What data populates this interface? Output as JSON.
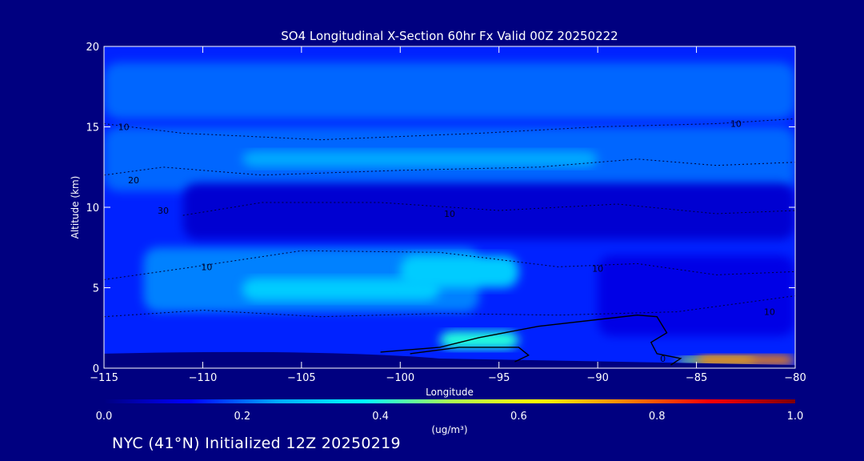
{
  "chart_data": {
    "type": "heatmap",
    "title": "SO4 Longitudinal X-Section 60hr  Fx Valid 00Z 20250222",
    "xlabel": "Longitude",
    "ylabel": "Altitude (km)",
    "xlim": [
      -115,
      -80
    ],
    "ylim": [
      0,
      20
    ],
    "x_ticks": [
      -115,
      -110,
      -105,
      -100,
      -95,
      -90,
      -85,
      -80
    ],
    "x_tick_labels": [
      "−115",
      "−110",
      "−105",
      "−100",
      "−95",
      "−90",
      "−85",
      "−80"
    ],
    "y_ticks": [
      0,
      5,
      10,
      15,
      20
    ],
    "y_tick_labels": [
      "0",
      "5",
      "10",
      "15",
      "20"
    ],
    "colorbar": {
      "label": "(ug/m³)",
      "range": [
        0.0,
        1.0
      ],
      "ticks": [
        0.0,
        0.2,
        0.4,
        0.6,
        0.8,
        1.0
      ],
      "tick_labels": [
        "0.0",
        "0.2",
        "0.4",
        "0.6",
        "0.8",
        "1.0"
      ],
      "colormap": "jet",
      "colors": [
        "#000080",
        "#0000ff",
        "#00aaff",
        "#00ffff",
        "#aaff55",
        "#ffff00",
        "#ff8800",
        "#ff0000",
        "#800000"
      ]
    },
    "filled_regions": [
      {
        "lon": [
          -115,
          -80
        ],
        "alt": [
          0,
          20
        ],
        "value": 0.15
      },
      {
        "lon": [
          -115,
          -80
        ],
        "alt": [
          15.5,
          19
        ],
        "value": 0.2
      },
      {
        "lon": [
          -115,
          -80
        ],
        "alt": [
          11,
          15
        ],
        "value": 0.2
      },
      {
        "lon": [
          -108,
          -90
        ],
        "alt": [
          12.5,
          13.5
        ],
        "value": 0.25
      },
      {
        "lon": [
          -113,
          -96
        ],
        "alt": [
          3.5,
          7.5
        ],
        "value": 0.22
      },
      {
        "lon": [
          -108,
          -98
        ],
        "alt": [
          4.2,
          5.6
        ],
        "value": 0.3
      },
      {
        "lon": [
          -100,
          -94
        ],
        "alt": [
          5,
          7
        ],
        "value": 0.3
      },
      {
        "lon": [
          -111,
          -80
        ],
        "alt": [
          8,
          11.5
        ],
        "value": 0.08
      },
      {
        "lon": [
          -90,
          -80
        ],
        "alt": [
          2,
          7
        ],
        "value": 0.1
      },
      {
        "lon": [
          -98,
          -94
        ],
        "alt": [
          1.2,
          2.3
        ],
        "value": 0.4
      },
      {
        "lon": [
          -86,
          -82
        ],
        "alt": [
          0.3,
          0.7
        ],
        "value": 0.5
      },
      {
        "lon": [
          -85,
          -80
        ],
        "alt": [
          0.2,
          0.8
        ],
        "value": 0.75
      }
    ],
    "contour_labels": [
      {
        "text": "10",
        "lon": -114,
        "alt": 15
      },
      {
        "text": "20",
        "lon": -113.5,
        "alt": 11.7
      },
      {
        "text": "30",
        "lon": -112,
        "alt": 9.8
      },
      {
        "text": "10",
        "lon": -109.8,
        "alt": 6.3
      },
      {
        "text": "10",
        "lon": -97.5,
        "alt": 9.6
      },
      {
        "text": "10",
        "lon": -90,
        "alt": 6.2
      },
      {
        "text": "10",
        "lon": -83,
        "alt": 15.2
      },
      {
        "text": "10",
        "lon": -81.3,
        "alt": 3.5
      },
      {
        "text": "0",
        "lon": -86.7,
        "alt": 0.6
      }
    ]
  },
  "footer": "NYC (41°N) Initialized 12Z 20250219"
}
